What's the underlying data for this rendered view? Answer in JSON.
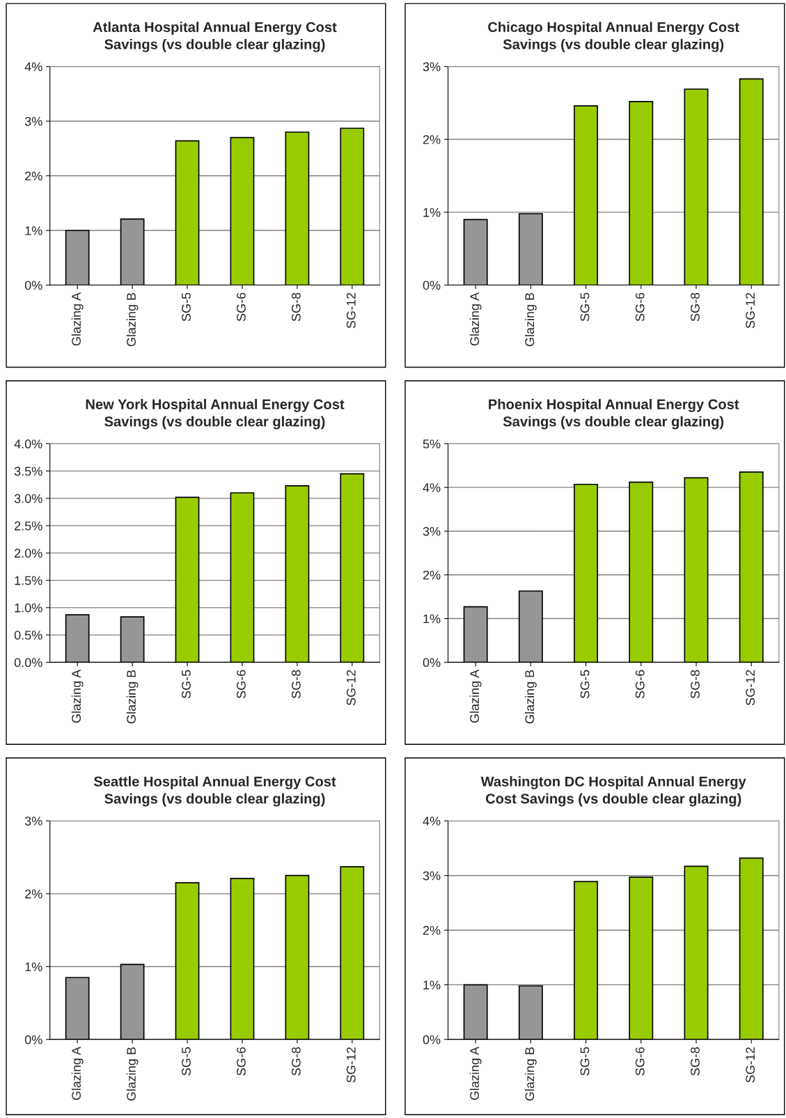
{
  "chart_data": [
    {
      "type": "bar",
      "title": "Atlanta Hospital Annual Energy Cost\nSavings (vs double clear glazing)",
      "categories": [
        "Glazing A",
        "Glazing B",
        "SG-5",
        "SG-6",
        "SG-8",
        "SG-12"
      ],
      "values": [
        1.0,
        1.21,
        2.64,
        2.7,
        2.8,
        2.87
      ],
      "colors": [
        "#969696",
        "#969696",
        "#99cc00",
        "#99cc00",
        "#99cc00",
        "#99cc00"
      ],
      "ylim": [
        0,
        4
      ],
      "yticks": [
        {
          "value": 0,
          "label": "0%"
        },
        {
          "value": 1,
          "label": "1%"
        },
        {
          "value": 2,
          "label": "2%"
        },
        {
          "value": 3,
          "label": "3%"
        },
        {
          "value": 4,
          "label": "4%"
        }
      ],
      "grid": "y"
    },
    {
      "type": "bar",
      "title": "Chicago Hospital Annual Energy Cost\nSavings (vs double clear glazing)",
      "categories": [
        "Glazing A",
        "Glazing B",
        "SG-5",
        "SG-6",
        "SG-8",
        "SG-12"
      ],
      "values": [
        0.9,
        0.98,
        2.46,
        2.52,
        2.69,
        2.83
      ],
      "colors": [
        "#969696",
        "#969696",
        "#99cc00",
        "#99cc00",
        "#99cc00",
        "#99cc00"
      ],
      "ylim": [
        0,
        3
      ],
      "yticks": [
        {
          "value": 0,
          "label": "0%"
        },
        {
          "value": 1,
          "label": "1%"
        },
        {
          "value": 2,
          "label": "2%"
        },
        {
          "value": 3,
          "label": "3%"
        }
      ],
      "grid": "y"
    },
    {
      "type": "bar",
      "title": "New York Hospital Annual Energy Cost\nSavings (vs double clear glazing)",
      "categories": [
        "Glazing A",
        "Glazing B",
        "SG-5",
        "SG-6",
        "SG-8",
        "SG-12"
      ],
      "values": [
        0.87,
        0.83,
        3.02,
        3.1,
        3.23,
        3.45
      ],
      "colors": [
        "#969696",
        "#969696",
        "#99cc00",
        "#99cc00",
        "#99cc00",
        "#99cc00"
      ],
      "ylim": [
        0,
        4
      ],
      "yticks": [
        {
          "value": 0,
          "label": "0.0%"
        },
        {
          "value": 0.5,
          "label": "0.5%"
        },
        {
          "value": 1,
          "label": "1.0%"
        },
        {
          "value": 1.5,
          "label": "1.5%"
        },
        {
          "value": 2,
          "label": "2.0%"
        },
        {
          "value": 2.5,
          "label": "2.5%"
        },
        {
          "value": 3,
          "label": "3.0%"
        },
        {
          "value": 3.5,
          "label": "3.5%"
        },
        {
          "value": 4,
          "label": "4.0%"
        }
      ],
      "grid": "y"
    },
    {
      "type": "bar",
      "title": "Phoenix Hospital Annual Energy Cost\nSavings (vs double clear glazing)",
      "categories": [
        "Glazing A",
        "Glazing B",
        "SG-5",
        "SG-6",
        "SG-8",
        "SG-12"
      ],
      "values": [
        1.27,
        1.63,
        4.07,
        4.12,
        4.22,
        4.35
      ],
      "colors": [
        "#969696",
        "#969696",
        "#99cc00",
        "#99cc00",
        "#99cc00",
        "#99cc00"
      ],
      "ylim": [
        0,
        5
      ],
      "yticks": [
        {
          "value": 0,
          "label": "0%"
        },
        {
          "value": 1,
          "label": "1%"
        },
        {
          "value": 2,
          "label": "2%"
        },
        {
          "value": 3,
          "label": "3%"
        },
        {
          "value": 4,
          "label": "4%"
        },
        {
          "value": 5,
          "label": "5%"
        }
      ],
      "grid": "y"
    },
    {
      "type": "bar",
      "title": "Seattle Hospital Annual Energy Cost\nSavings (vs double clear glazing)",
      "categories": [
        "Glazing A",
        "Glazing B",
        "SG-5",
        "SG-6",
        "SG-8",
        "SG-12"
      ],
      "values": [
        0.85,
        1.03,
        2.15,
        2.21,
        2.25,
        2.37
      ],
      "colors": [
        "#969696",
        "#969696",
        "#99cc00",
        "#99cc00",
        "#99cc00",
        "#99cc00"
      ],
      "ylim": [
        0,
        3
      ],
      "yticks": [
        {
          "value": 0,
          "label": "0%"
        },
        {
          "value": 1,
          "label": "1%"
        },
        {
          "value": 2,
          "label": "2%"
        },
        {
          "value": 3,
          "label": "3%"
        }
      ],
      "grid": "y"
    },
    {
      "type": "bar",
      "title": "Washington DC Hospital Annual Energy\nCost Savings (vs double clear glazing)",
      "categories": [
        "Glazing A",
        "Glazing B",
        "SG-5",
        "SG-6",
        "SG-8",
        "SG-12"
      ],
      "values": [
        1.0,
        0.98,
        2.89,
        2.97,
        3.17,
        3.32
      ],
      "colors": [
        "#969696",
        "#969696",
        "#99cc00",
        "#99cc00",
        "#99cc00",
        "#99cc00"
      ],
      "ylim": [
        0,
        4
      ],
      "yticks": [
        {
          "value": 0,
          "label": "0%"
        },
        {
          "value": 1,
          "label": "1%"
        },
        {
          "value": 2,
          "label": "2%"
        },
        {
          "value": 3,
          "label": "3%"
        },
        {
          "value": 4,
          "label": "4%"
        }
      ],
      "grid": "y"
    }
  ]
}
